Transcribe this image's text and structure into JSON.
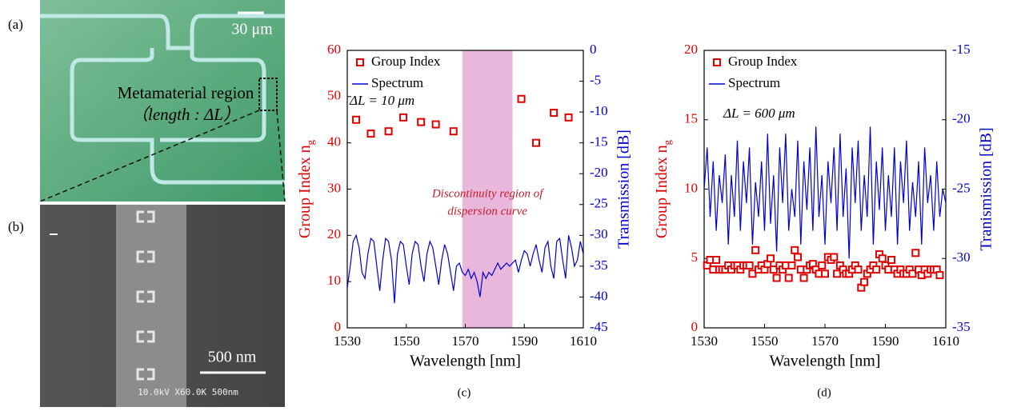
{
  "panels": {
    "a": {
      "label": "(a)",
      "scale_bar": "30 μm",
      "annotation": [
        "Metamaterial region",
        "（length : ΔL）"
      ]
    },
    "b": {
      "label": "(b)",
      "scale_bar": "500 nm",
      "sem_info": "10.0kV X60.0K 500nm"
    }
  },
  "chart_data": [
    {
      "type": "combo",
      "caption": "(c)",
      "xlabel": "Wavelength  [nm]",
      "ylabel": "Group Index n",
      "ylabel_sub": "g",
      "y2label": "Transmission [dB]",
      "annotation": "ΔL = 10 μm",
      "legend": "upper left",
      "shaded_region": [
        1569,
        1586
      ],
      "shaded_color": "#e9b6dc",
      "shaded_label": [
        "Discontinuity region of",
        "dispersion curve"
      ],
      "xlim": [
        1530,
        1610
      ],
      "xticks": [
        1530,
        1550,
        1570,
        1590,
        1610
      ],
      "ylim": [
        0,
        60
      ],
      "yticks": [
        0,
        10,
        20,
        30,
        40,
        50,
        60
      ],
      "y2lim": [
        -45,
        0
      ],
      "y2ticks": [
        -45,
        -40,
        -35,
        -30,
        -25,
        -20,
        -15,
        -10,
        -5,
        0
      ],
      "series": [
        {
          "name": "Group Index",
          "type": "scatter",
          "color": "#e00000",
          "x": [
            1533,
            1538,
            1544,
            1549,
            1555,
            1560,
            1566,
            1589,
            1594,
            1600,
            1605
          ],
          "values": [
            45,
            42,
            42.5,
            45.5,
            44.5,
            44,
            42.5,
            49.5,
            40,
            46.5,
            45.5
          ]
        },
        {
          "name": "Spectrum",
          "type": "line",
          "color": "#0000d0",
          "axis": "y2",
          "x": [
            1530,
            1531,
            1532,
            1533,
            1534,
            1535,
            1536,
            1537,
            1538,
            1539,
            1540,
            1541,
            1542,
            1543,
            1544,
            1545,
            1546,
            1547,
            1548,
            1549,
            1550,
            1551,
            1552,
            1553,
            1554,
            1555,
            1556,
            1557,
            1558,
            1559,
            1560,
            1561,
            1562,
            1563,
            1564,
            1565,
            1566,
            1567,
            1568,
            1569,
            1570,
            1571,
            1572,
            1573,
            1574,
            1575,
            1576,
            1577,
            1578,
            1579,
            1580,
            1581,
            1582,
            1583,
            1584,
            1585,
            1586,
            1587,
            1588,
            1589,
            1590,
            1591,
            1592,
            1593,
            1594,
            1595,
            1596,
            1597,
            1598,
            1599,
            1600,
            1601,
            1602,
            1603,
            1604,
            1605,
            1606,
            1607,
            1608,
            1609,
            1610
          ],
          "values": [
            -38.5,
            -35,
            -31,
            -30,
            -32,
            -36,
            -37,
            -33,
            -30.5,
            -31,
            -35,
            -39,
            -34,
            -30.5,
            -31,
            -34,
            -41,
            -33,
            -31,
            -31.5,
            -35,
            -38,
            -33,
            -31,
            -31.5,
            -35,
            -37.5,
            -33,
            -31,
            -32,
            -35,
            -38,
            -34,
            -31.5,
            -33,
            -36,
            -39,
            -35,
            -34.5,
            -36,
            -36.5,
            -35.5,
            -37,
            -36,
            -37.5,
            -40,
            -36,
            -37,
            -36,
            -36.5,
            -35.5,
            -34.5,
            -35.5,
            -35,
            -34.5,
            -35,
            -34.5,
            -34,
            -36,
            -34,
            -32.5,
            -33,
            -35,
            -33,
            -31.5,
            -34,
            -36,
            -32,
            -31,
            -35,
            -37,
            -31,
            -30.5,
            -34,
            -37,
            -30,
            -32,
            -35,
            -34,
            -31,
            -33
          ]
        }
      ]
    },
    {
      "type": "combo",
      "caption": "(d)",
      "xlabel": "Wavelength  [nm]",
      "ylabel": "Group Index n",
      "ylabel_sub": "g",
      "y2label": "Tranismission [dB]",
      "annotation": "ΔL = 600 μm",
      "legend": "upper left",
      "xlim": [
        1530,
        1610
      ],
      "xticks": [
        1530,
        1550,
        1570,
        1590,
        1610
      ],
      "ylim": [
        0,
        20
      ],
      "yticks": [
        0,
        5,
        10,
        15,
        20
      ],
      "y2lim": [
        -35,
        -15
      ],
      "y2ticks": [
        -35,
        -30,
        -25,
        -20,
        -15
      ],
      "series": [
        {
          "name": "Group Index",
          "type": "scatter",
          "color": "#e00000",
          "x": [
            1531,
            1532,
            1533,
            1534,
            1535,
            1536,
            1537,
            1538,
            1539,
            1540,
            1541,
            1542,
            1543,
            1544,
            1545,
            1546,
            1547,
            1548,
            1549,
            1550,
            1551,
            1552,
            1553,
            1554,
            1555,
            1556,
            1557,
            1558,
            1559,
            1560,
            1561,
            1562,
            1563,
            1564,
            1565,
            1566,
            1567,
            1568,
            1569,
            1570,
            1571,
            1572,
            1573,
            1574,
            1575,
            1576,
            1577,
            1578,
            1579,
            1580,
            1581,
            1582,
            1583,
            1584,
            1585,
            1586,
            1587,
            1588,
            1589,
            1590,
            1591,
            1592,
            1593,
            1594,
            1595,
            1596,
            1597,
            1598,
            1599,
            1600,
            1601,
            1602,
            1603,
            1604,
            1605,
            1606,
            1607,
            1608
          ],
          "values": [
            4.5,
            4.9,
            4.2,
            4.9,
            4.2,
            4.2,
            4.2,
            4.5,
            4.2,
            4.5,
            4.5,
            4.2,
            4.5,
            4.5,
            4.5,
            3.9,
            5.6,
            4.2,
            4.5,
            4.2,
            4.6,
            5.0,
            4.2,
            3.6,
            4.5,
            4.2,
            4.5,
            3.6,
            4.5,
            5.6,
            5.1,
            4.2,
            3.6,
            4.2,
            4.5,
            4.6,
            4.2,
            3.9,
            4.5,
            3.9,
            5.1,
            4.9,
            5.1,
            3.9,
            4.5,
            4.2,
            3.9,
            3.9,
            4.2,
            4.5,
            4.2,
            2.9,
            3.3,
            3.9,
            4.2,
            4.5,
            4.2,
            5.3,
            5.0,
            4.5,
            4.2,
            4.9,
            4.2,
            3.9,
            4.2,
            3.9,
            3.9,
            4.2,
            3.9,
            5.4,
            4.2,
            3.8,
            4.2,
            3.9,
            4.2,
            4.2,
            4.2,
            3.8
          ]
        },
        {
          "name": "Spectrum",
          "type": "line",
          "color": "#0000d0",
          "axis": "y2",
          "x": [
            1530,
            1531,
            1532,
            1533,
            1534,
            1535,
            1536,
            1537,
            1538,
            1539,
            1540,
            1541,
            1542,
            1543,
            1544,
            1545,
            1546,
            1547,
            1548,
            1549,
            1550,
            1551,
            1552,
            1553,
            1554,
            1555,
            1556,
            1557,
            1558,
            1559,
            1560,
            1561,
            1562,
            1563,
            1564,
            1565,
            1566,
            1567,
            1568,
            1569,
            1570,
            1571,
            1572,
            1573,
            1574,
            1575,
            1576,
            1577,
            1578,
            1579,
            1580,
            1581,
            1582,
            1583,
            1584,
            1585,
            1586,
            1587,
            1588,
            1589,
            1590,
            1591,
            1592,
            1593,
            1594,
            1595,
            1596,
            1597,
            1598,
            1599,
            1600,
            1601,
            1602,
            1603,
            1604,
            1605,
            1606,
            1607,
            1608,
            1609,
            1610
          ],
          "values": [
            -25,
            -22,
            -27,
            -23,
            -28,
            -24,
            -26,
            -22.5,
            -29,
            -24,
            -27,
            -21.5,
            -28,
            -23,
            -26,
            -22,
            -29,
            -24.5,
            -27,
            -23,
            -28,
            -21,
            -27.5,
            -24,
            -29.5,
            -22,
            -26,
            -21,
            -28,
            -25,
            -27,
            -21.5,
            -29,
            -23,
            -26.5,
            -22,
            -28,
            -20.5,
            -27,
            -24,
            -29,
            -23,
            -26,
            -22,
            -28,
            -21,
            -27,
            -23.5,
            -30,
            -22,
            -26,
            -21.5,
            -28,
            -24,
            -27,
            -20.5,
            -29,
            -23,
            -26.5,
            -22,
            -28,
            -24,
            -27,
            -22,
            -29,
            -23,
            -26,
            -21.5,
            -28,
            -24.5,
            -27,
            -23,
            -29,
            -22,
            -26,
            -24,
            -28,
            -23,
            -27,
            -25,
            -26
          ]
        }
      ]
    }
  ]
}
